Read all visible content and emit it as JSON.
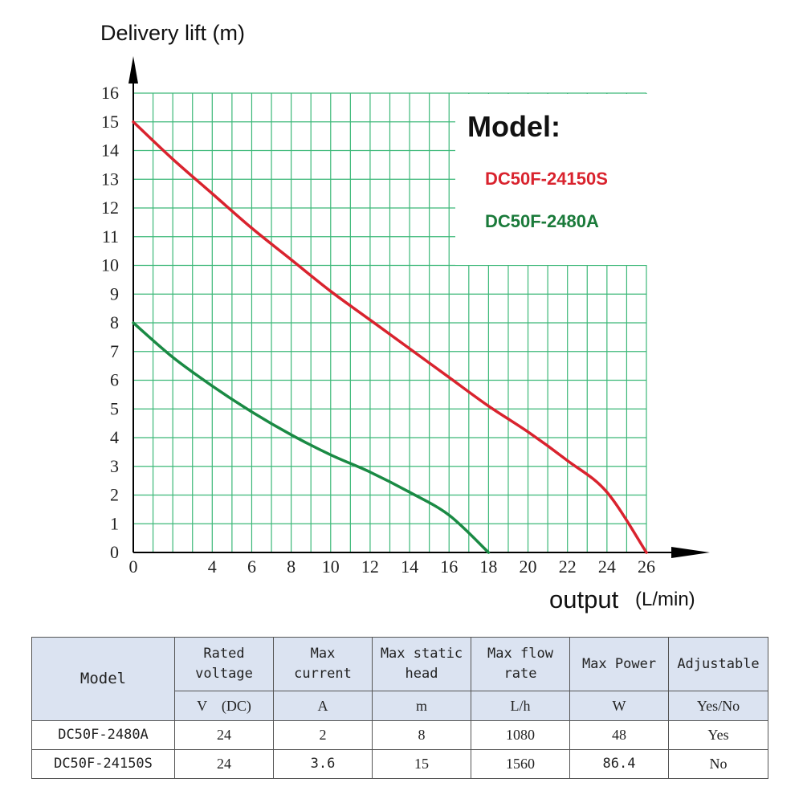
{
  "chart_data": {
    "type": "line",
    "ylabel": "Delivery lift (m)",
    "xlabel": "output",
    "xlabel_unit": "(L/min)",
    "x_ticks": [
      0,
      4,
      6,
      8,
      10,
      12,
      14,
      16,
      18,
      20,
      22,
      24,
      26
    ],
    "y_ticks": [
      0,
      1,
      2,
      3,
      4,
      5,
      6,
      7,
      8,
      9,
      10,
      11,
      12,
      13,
      14,
      15,
      16
    ],
    "xlim": [
      0,
      26
    ],
    "ylim": [
      0,
      16
    ],
    "grid": true,
    "legend_title": "Model:",
    "legend_placement": "top-right",
    "series": [
      {
        "name": "DC50F-24150S",
        "color": "#d9232e",
        "points": [
          [
            0,
            15
          ],
          [
            2,
            13.7
          ],
          [
            4,
            12.5
          ],
          [
            6,
            11.3
          ],
          [
            8,
            10.2
          ],
          [
            10,
            9.1
          ],
          [
            12,
            8.1
          ],
          [
            14,
            7.1
          ],
          [
            16,
            6.1
          ],
          [
            18,
            5.1
          ],
          [
            20,
            4.2
          ],
          [
            22,
            3.2
          ],
          [
            24,
            2.1
          ],
          [
            26,
            0
          ]
        ]
      },
      {
        "name": "DC50F-2480A",
        "color": "#1a8a44",
        "points": [
          [
            0,
            8
          ],
          [
            2,
            6.8
          ],
          [
            4,
            5.8
          ],
          [
            6,
            4.9
          ],
          [
            8,
            4.1
          ],
          [
            10,
            3.4
          ],
          [
            12,
            2.8
          ],
          [
            14,
            2.1
          ],
          [
            16,
            1.3
          ],
          [
            18,
            0
          ]
        ]
      }
    ]
  },
  "table": {
    "model_header": "Model",
    "columns": [
      {
        "header_line1": "Rated",
        "header_line2": "voltage",
        "unit": "V　(DC)"
      },
      {
        "header_line1": "Max",
        "header_line2": "current",
        "unit": "A"
      },
      {
        "header_line1": "Max static",
        "header_line2": "head",
        "unit": "m"
      },
      {
        "header_line1": "Max flow",
        "header_line2": "rate",
        "unit": "L/h"
      },
      {
        "header_line1": "Max Power",
        "header_line2": "",
        "unit": "W"
      },
      {
        "header_line1": "Adjustable",
        "header_line2": "",
        "unit": "Yes/No"
      }
    ],
    "rows": [
      {
        "model": "DC50F-2480A",
        "values": [
          "24",
          "2",
          "8",
          "1080",
          "48",
          "Yes"
        ]
      },
      {
        "model": "DC50F-24150S",
        "values": [
          "24",
          "3.6",
          "15",
          "1560",
          "86.4",
          "No"
        ]
      }
    ]
  }
}
